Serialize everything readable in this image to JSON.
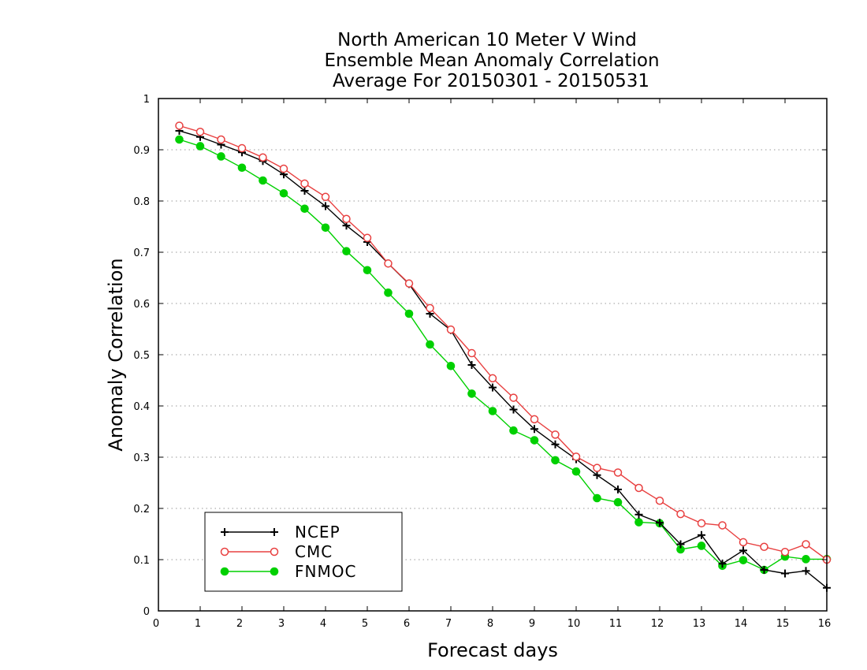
{
  "chart_data": {
    "type": "line",
    "title": [
      "North American 10 Meter V Wind",
      "Ensemble Mean Anomaly Correlation",
      "Average For 20150301 - 20150531"
    ],
    "xlabel": "Forecast days",
    "ylabel": "Anomaly Correlation",
    "xlim": [
      0,
      16
    ],
    "ylim": [
      0,
      1
    ],
    "xticks": [
      "0",
      "1",
      "2",
      "3",
      "4",
      "5",
      "6",
      "7",
      "8",
      "9",
      "10",
      "11",
      "12",
      "13",
      "14",
      "15",
      "16"
    ],
    "yticks": [
      "0",
      "0.1",
      "0.2",
      "0.3",
      "0.4",
      "0.5",
      "0.6",
      "0.7",
      "0.8",
      "0.9",
      "1"
    ],
    "grid": "horizontal dotted",
    "legend_position": "bottom-left",
    "x": [
      0.5,
      1,
      1.5,
      2,
      2.5,
      3,
      3.5,
      4,
      4.5,
      5,
      5.5,
      6,
      6.5,
      7,
      7.5,
      8,
      8.5,
      9,
      9.5,
      10,
      10.5,
      11,
      11.5,
      12,
      12.5,
      13,
      13.5,
      14,
      14.5,
      15,
      15.5,
      16
    ],
    "series": [
      {
        "name": "NCEP",
        "color": "#000000",
        "marker": "plus",
        "values": [
          0.937,
          0.925,
          0.91,
          0.895,
          0.878,
          0.852,
          0.82,
          0.79,
          0.752,
          0.72,
          0.678,
          0.638,
          0.58,
          0.548,
          0.48,
          0.436,
          0.393,
          0.355,
          0.325,
          0.296,
          0.265,
          0.237,
          0.188,
          0.172,
          0.13,
          0.148,
          0.092,
          0.118,
          0.08,
          0.073,
          0.078,
          0.045
        ]
      },
      {
        "name": "CMC",
        "color": "#e84040",
        "marker": "open-circle",
        "values": [
          0.947,
          0.935,
          0.92,
          0.903,
          0.885,
          0.863,
          0.834,
          0.808,
          0.765,
          0.728,
          0.678,
          0.639,
          0.591,
          0.549,
          0.503,
          0.454,
          0.416,
          0.374,
          0.344,
          0.301,
          0.279,
          0.27,
          0.24,
          0.215,
          0.189,
          0.171,
          0.167,
          0.134,
          0.125,
          0.115,
          0.13,
          0.1
        ]
      },
      {
        "name": "FNMOC",
        "color": "#00d000",
        "marker": "filled-circle",
        "values": [
          0.92,
          0.907,
          0.887,
          0.865,
          0.84,
          0.815,
          0.785,
          0.748,
          0.702,
          0.665,
          0.621,
          0.58,
          0.52,
          0.478,
          0.424,
          0.39,
          0.352,
          0.333,
          0.294,
          0.272,
          0.22,
          0.212,
          0.173,
          0.171,
          0.12,
          0.127,
          0.088,
          0.099,
          0.08,
          0.106,
          0.101,
          0.101
        ]
      }
    ]
  }
}
